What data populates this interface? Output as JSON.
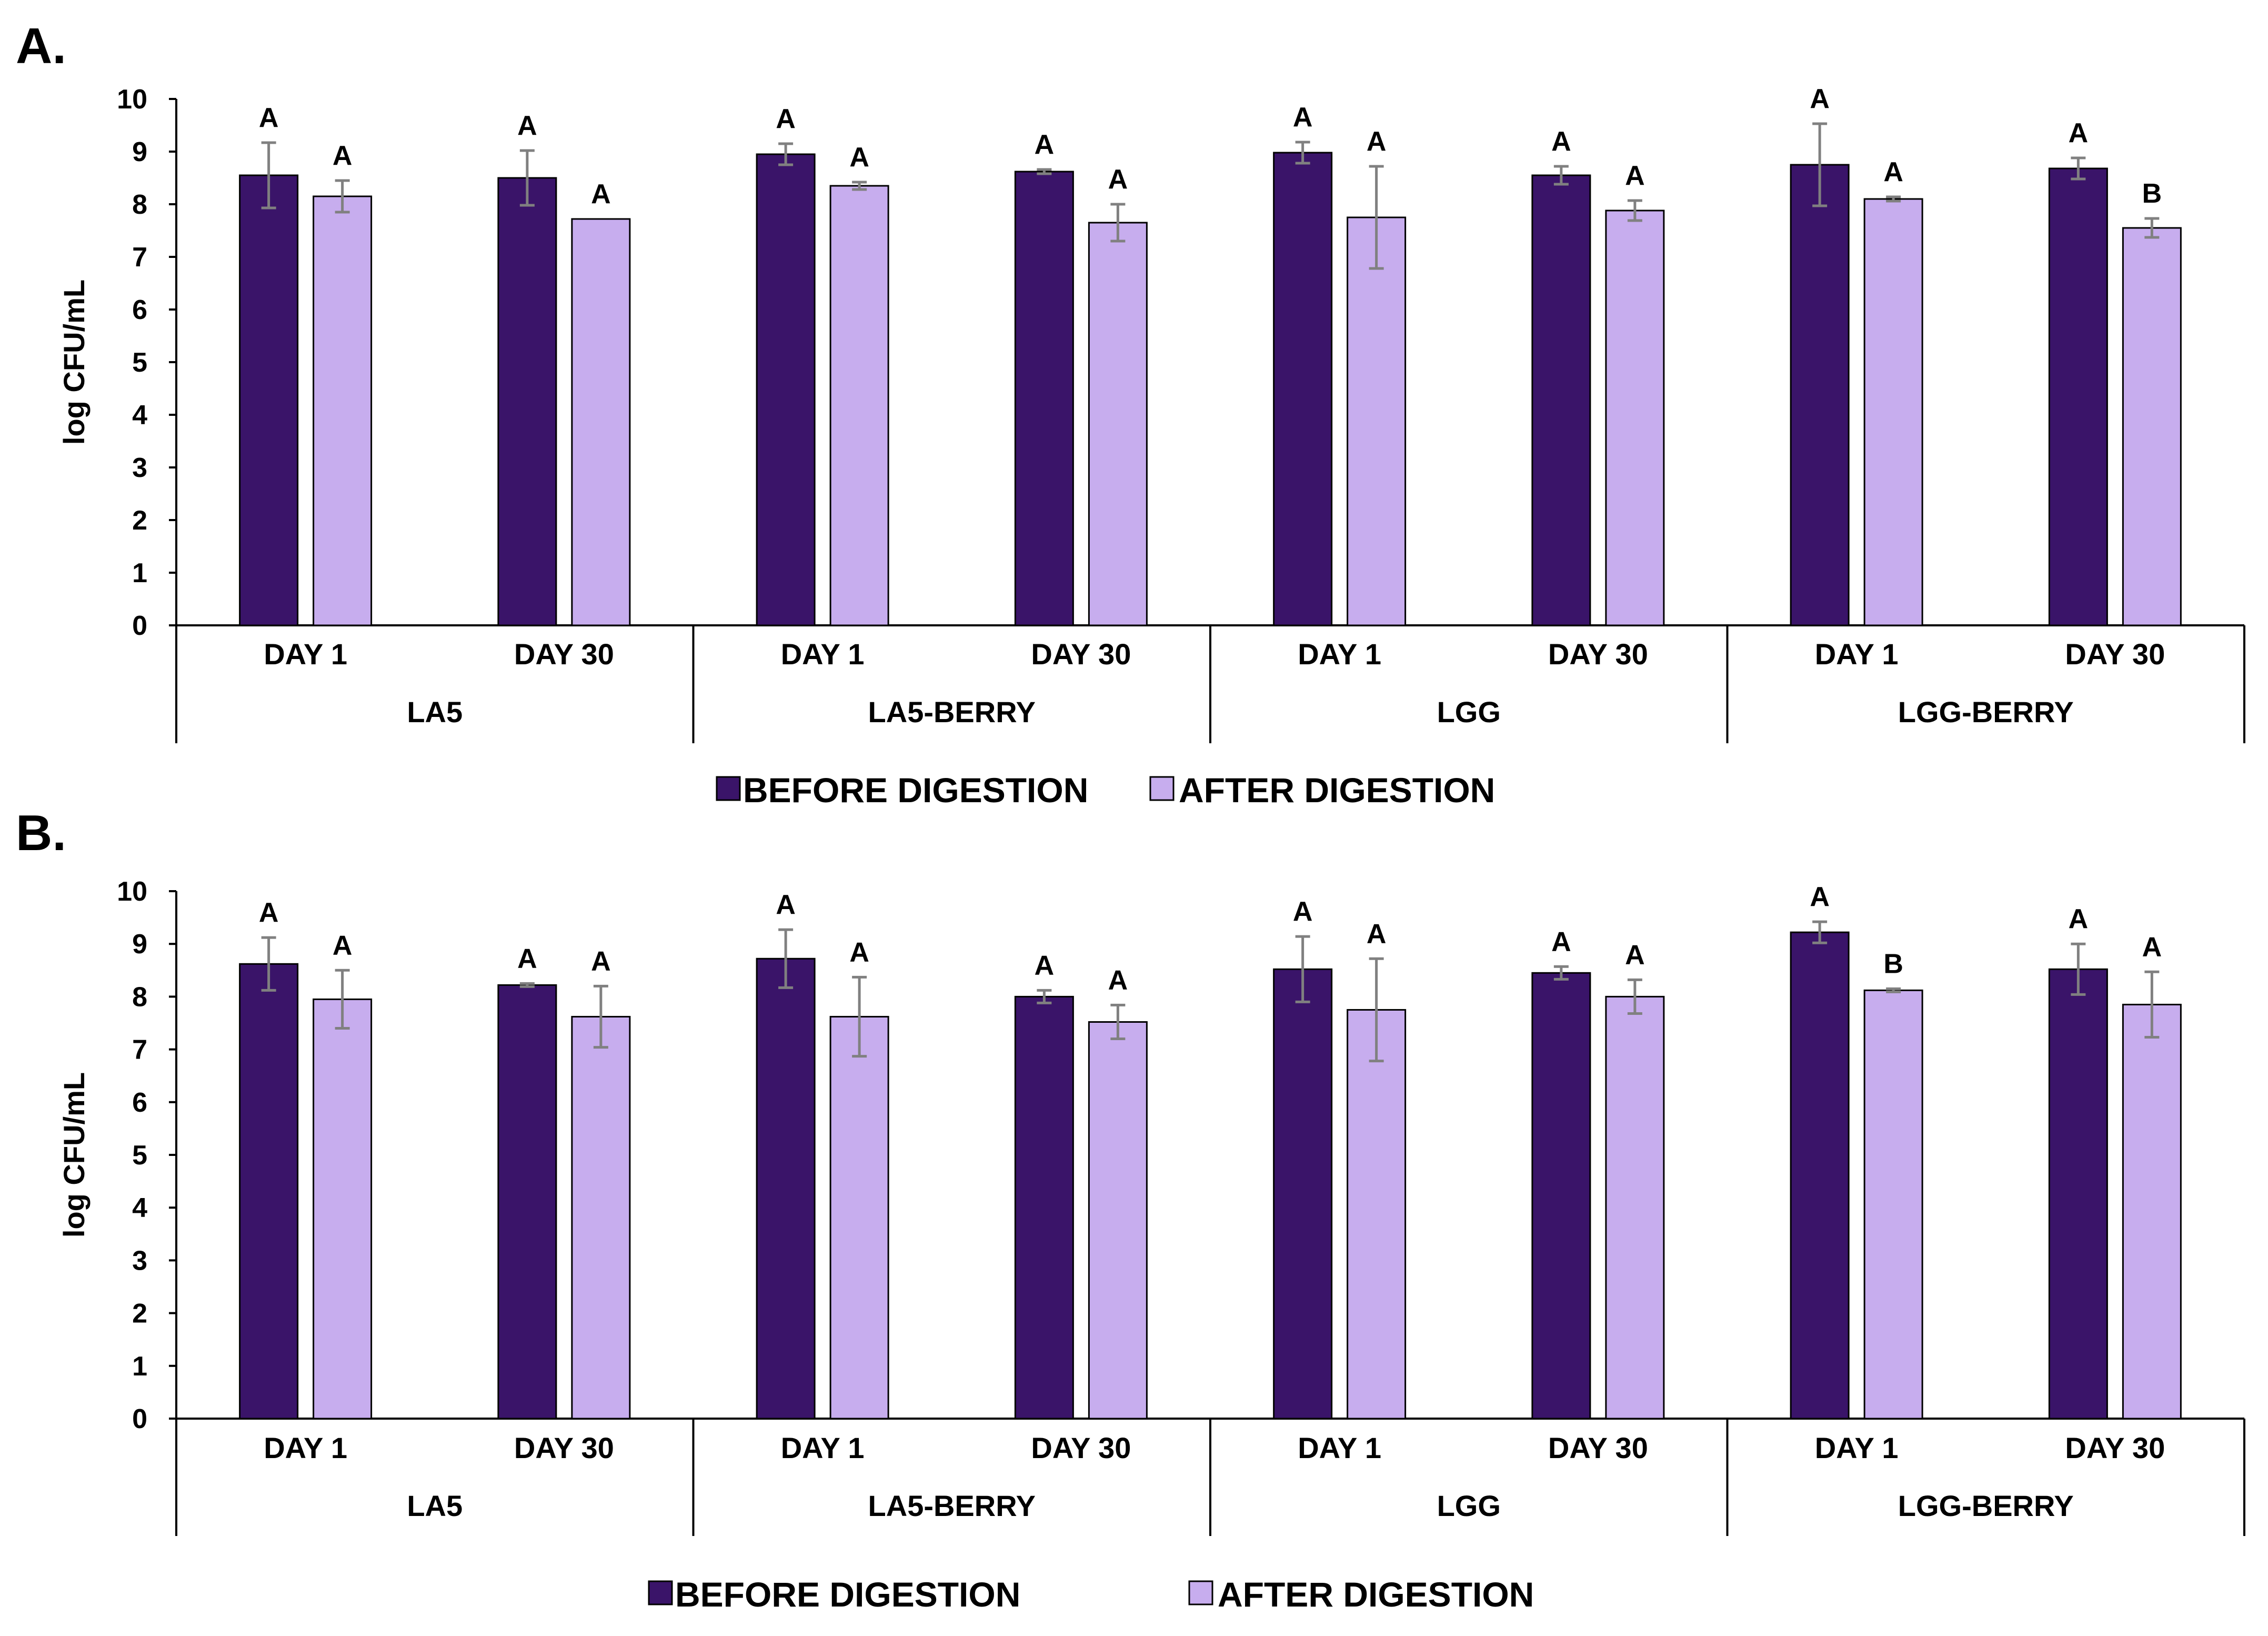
{
  "colors": {
    "before": "#3a1469",
    "after": "#c7adee",
    "error_bar": "#808080",
    "axis": "#000000"
  },
  "chart_data": [
    {
      "panel": "A.",
      "type": "bar",
      "ylabel": "log CFU/mL",
      "ylim": [
        0,
        10
      ],
      "yticks": [
        "0",
        "1",
        "2",
        "3",
        "4",
        "5",
        "6",
        "7",
        "8",
        "9",
        "10"
      ],
      "grid": false,
      "groups": [
        "LA5",
        "LA5-BERRY",
        "LGG",
        "LGG-BERRY"
      ],
      "subcategories": [
        "DAY 1",
        "DAY 30"
      ],
      "legend": [
        "BEFORE DIGESTION",
        "AFTER DIGESTION"
      ],
      "legend_position": "bottom",
      "series": [
        {
          "name": "BEFORE DIGESTION",
          "values": [
            8.55,
            8.5,
            8.95,
            8.62,
            8.98,
            8.55,
            8.75,
            8.68
          ],
          "errors": [
            0.62,
            0.52,
            0.2,
            0.04,
            0.2,
            0.17,
            0.78,
            0.2
          ],
          "letters": [
            "A",
            "A",
            "A",
            "A",
            "A",
            "A",
            "A",
            "A"
          ]
        },
        {
          "name": "AFTER DIGESTION",
          "values": [
            8.15,
            7.72,
            8.35,
            7.65,
            7.75,
            7.88,
            8.1,
            7.55
          ],
          "errors": [
            0.3,
            0.0,
            0.07,
            0.35,
            0.97,
            0.19,
            0.04,
            0.18
          ],
          "letters": [
            "A",
            "A",
            "A",
            "A",
            "A",
            "A",
            "A",
            "B"
          ]
        }
      ]
    },
    {
      "panel": "B.",
      "type": "bar",
      "ylabel": "log CFU/mL",
      "ylim": [
        0,
        10
      ],
      "yticks": [
        "0",
        "1",
        "2",
        "3",
        "4",
        "5",
        "6",
        "7",
        "8",
        "9",
        "10"
      ],
      "grid": false,
      "groups": [
        "LA5",
        "LA5-BERRY",
        "LGG",
        "LGG-BERRY"
      ],
      "subcategories": [
        "DAY 1",
        "DAY 30"
      ],
      "legend": [
        "BEFORE DIGESTION",
        "AFTER DIGESTION"
      ],
      "legend_position": "bottom",
      "series": [
        {
          "name": "BEFORE DIGESTION",
          "values": [
            8.62,
            8.22,
            8.72,
            8.0,
            8.52,
            8.45,
            9.22,
            8.52
          ],
          "errors": [
            0.5,
            0.03,
            0.55,
            0.12,
            0.62,
            0.12,
            0.2,
            0.48
          ],
          "letters": [
            "A",
            "A",
            "A",
            "A",
            "A",
            "A",
            "A",
            "A"
          ]
        },
        {
          "name": "AFTER DIGESTION",
          "values": [
            7.95,
            7.62,
            7.62,
            7.52,
            7.75,
            8.0,
            8.12,
            7.85
          ],
          "errors": [
            0.55,
            0.58,
            0.75,
            0.32,
            0.97,
            0.32,
            0.03,
            0.62
          ],
          "letters": [
            "A",
            "A",
            "A",
            "A",
            "A",
            "A",
            "B",
            "A"
          ]
        }
      ]
    }
  ]
}
